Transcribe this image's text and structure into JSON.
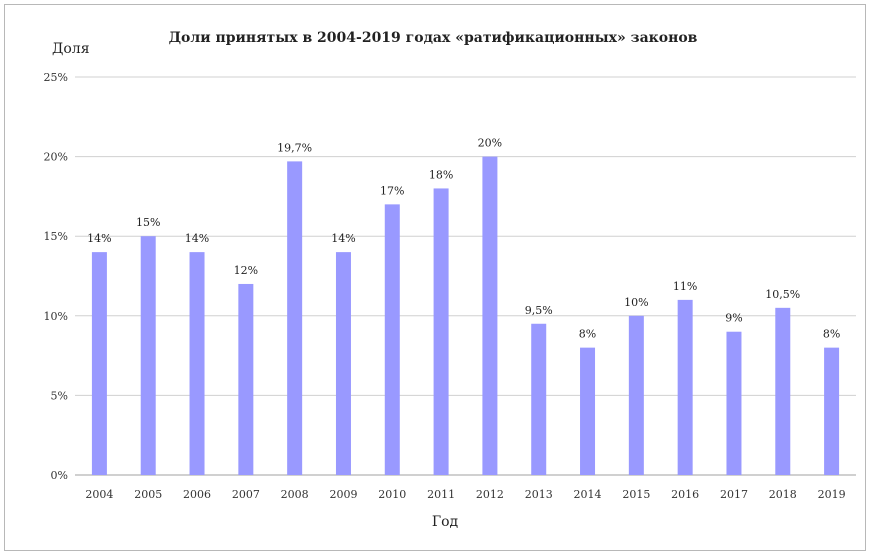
{
  "chart_data": {
    "type": "bar",
    "title": "Доли принятых в 2004-2019 годах «ратификационных» законов",
    "xlabel": "Год",
    "ylabel": "Доля",
    "categories": [
      "2004",
      "2005",
      "2006",
      "2007",
      "2008",
      "2009",
      "2010",
      "2011",
      "2012",
      "2013",
      "2014",
      "2015",
      "2016",
      "2017",
      "2018",
      "2019"
    ],
    "values": [
      14,
      15,
      14,
      12,
      19.7,
      14,
      17,
      18,
      20,
      9.5,
      8,
      10,
      11,
      9,
      10.5,
      8
    ],
    "data_labels": [
      "14%",
      "15%",
      "14%",
      "12%",
      "19,7%",
      "14%",
      "17%",
      "18%",
      "20%",
      "9,5%",
      "8%",
      "10%",
      "11%",
      "9%",
      "10,5%",
      "8%"
    ],
    "yticks": [
      "0%",
      "5%",
      "10%",
      "15%",
      "20%",
      "25%"
    ],
    "ylim": [
      0,
      25
    ],
    "grid": true,
    "bar_color": "#9999ff",
    "grid_color": "#d0d0d0"
  }
}
